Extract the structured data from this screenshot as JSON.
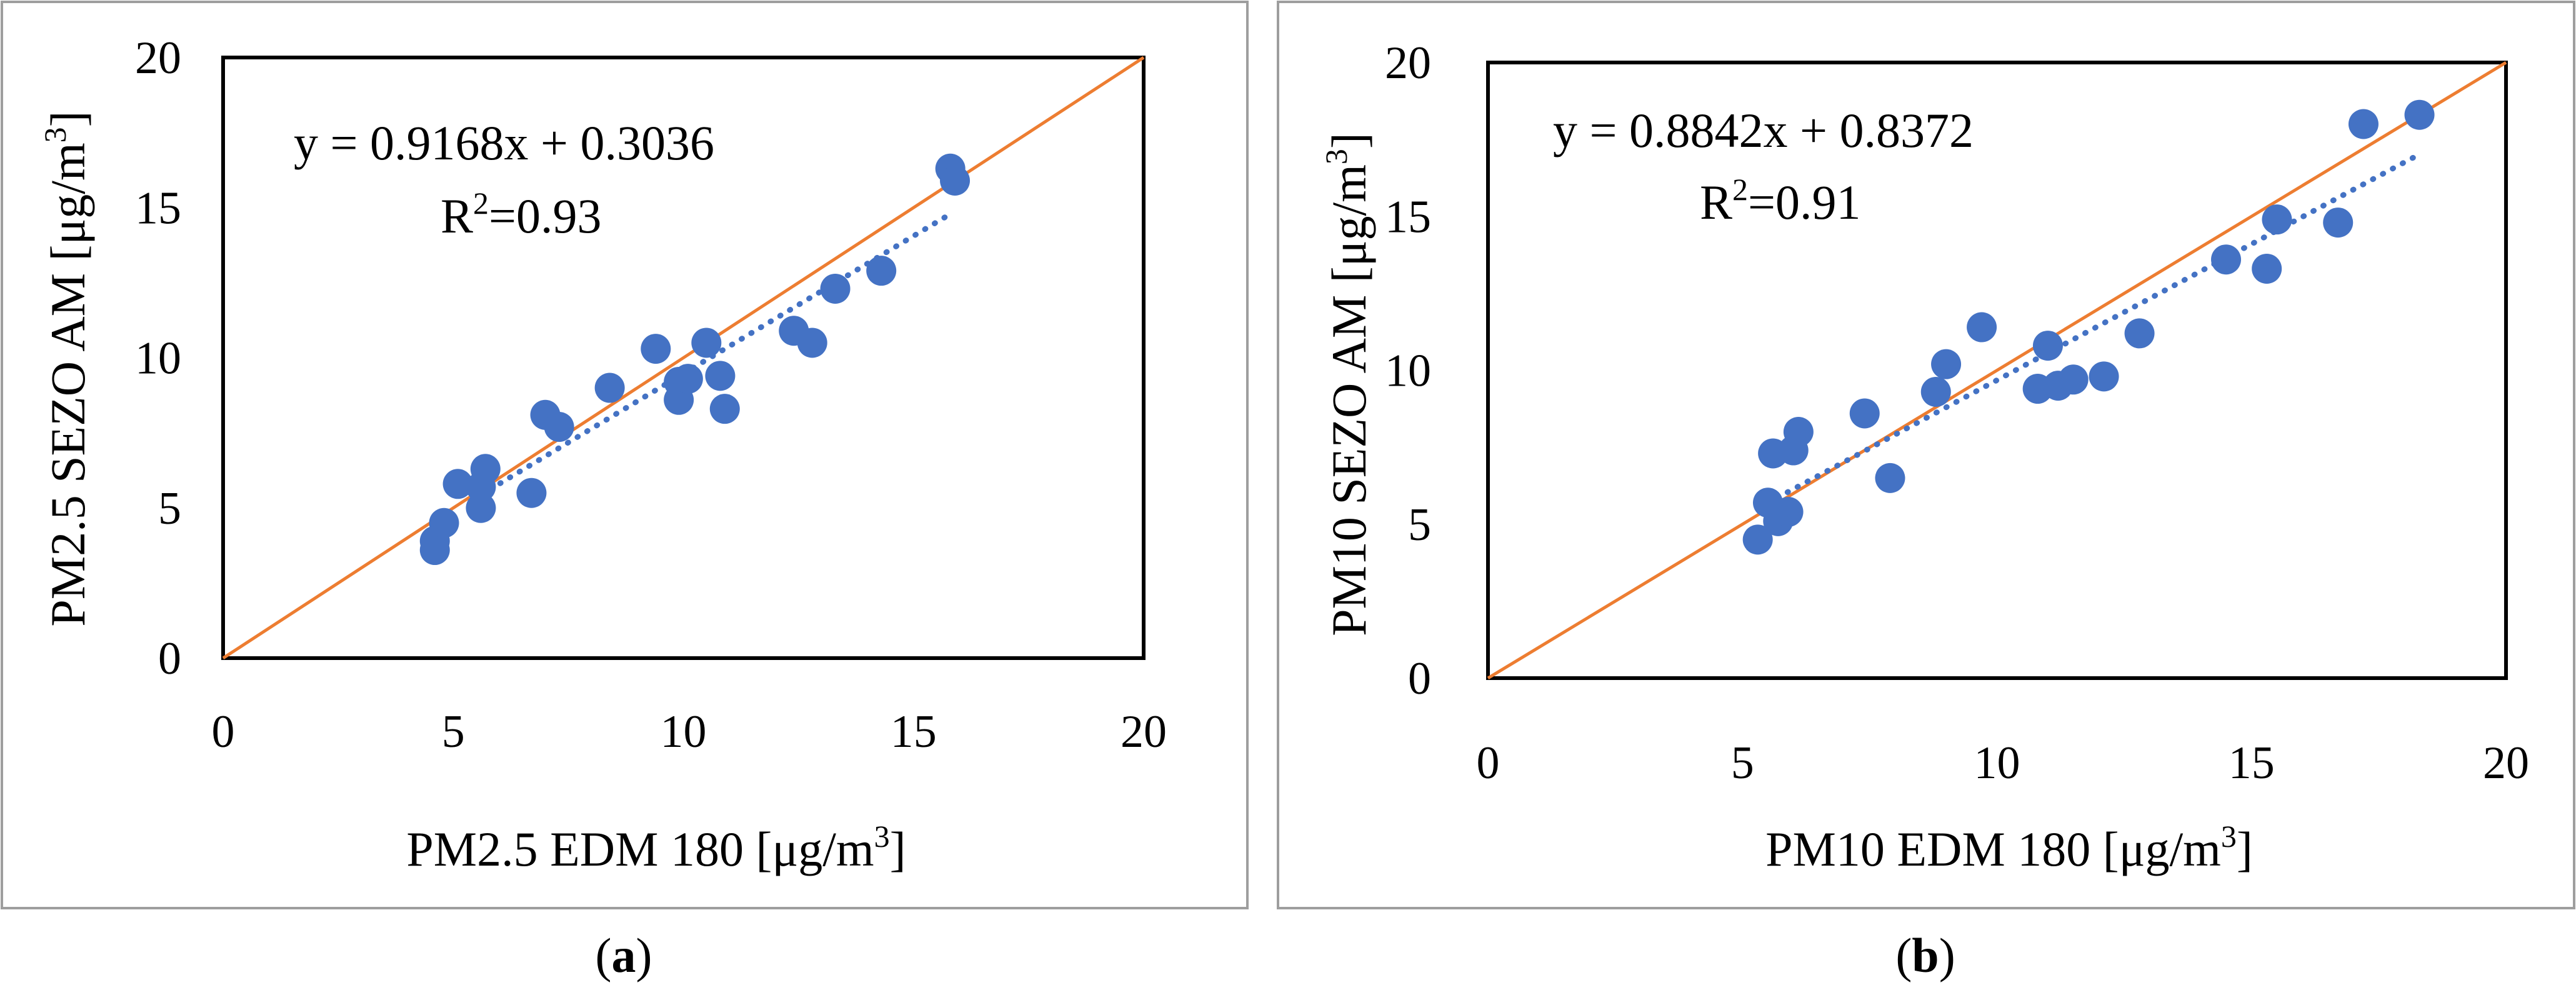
{
  "chart_data": [
    {
      "type": "scatter",
      "panel_label": "a",
      "xlabel": "PM2.5 EDM 180 [μg/m3]",
      "ylabel": "PM2.5 SEZO AM [μg/m3]",
      "xlim": [
        0,
        20
      ],
      "ylim": [
        0,
        20
      ],
      "x_ticks": [
        "0",
        "5",
        "10",
        "15",
        "20"
      ],
      "y_ticks": [
        "0",
        "5",
        "10",
        "15",
        "20"
      ],
      "equation": "y = 0.9168x + 0.3036",
      "r_squared": "R2=0.93",
      "trendline": {
        "slope": 0.9168,
        "intercept": 0.3036,
        "x_range": [
          5.6,
          15.8
        ]
      },
      "reference_line": {
        "label": "1:1",
        "slope": 1,
        "intercept": 0
      },
      "points": [
        [
          4.6,
          3.6
        ],
        [
          4.6,
          3.9
        ],
        [
          4.8,
          4.5
        ],
        [
          5.1,
          5.8
        ],
        [
          5.6,
          5.0
        ],
        [
          5.6,
          5.7
        ],
        [
          5.7,
          6.3
        ],
        [
          6.7,
          5.5
        ],
        [
          7.0,
          8.1
        ],
        [
          7.3,
          7.7
        ],
        [
          8.4,
          9.0
        ],
        [
          9.4,
          10.3
        ],
        [
          9.9,
          9.2
        ],
        [
          9.9,
          8.6
        ],
        [
          10.1,
          9.3
        ],
        [
          10.5,
          10.5
        ],
        [
          10.8,
          9.4
        ],
        [
          10.9,
          8.3
        ],
        [
          12.4,
          10.9
        ],
        [
          12.8,
          10.5
        ],
        [
          13.3,
          12.3
        ],
        [
          14.3,
          12.9
        ],
        [
          15.8,
          16.3
        ],
        [
          15.9,
          15.9
        ]
      ]
    },
    {
      "type": "scatter",
      "panel_label": "b",
      "xlabel": "PM10 EDM 180 [μg/m3]",
      "ylabel": "PM10 SEZO AM [μg/m3]",
      "xlim": [
        0,
        20
      ],
      "ylim": [
        0,
        20
      ],
      "x_ticks": [
        "0",
        "5",
        "10",
        "15",
        "20"
      ],
      "y_ticks": [
        "0",
        "5",
        "10",
        "15",
        "20"
      ],
      "equation": "y = 0.8842x + 0.8372",
      "r_squared": "R2=0.91",
      "trendline": {
        "slope": 0.8842,
        "intercept": 0.8372,
        "x_range": [
          5.3,
          18.3
        ]
      },
      "reference_line": {
        "label": "1:1",
        "slope": 1,
        "intercept": 0
      },
      "points": [
        [
          5.3,
          4.5
        ],
        [
          5.5,
          5.7
        ],
        [
          5.6,
          7.3
        ],
        [
          5.7,
          5.1
        ],
        [
          5.9,
          5.4
        ],
        [
          6.0,
          7.4
        ],
        [
          6.1,
          8.0
        ],
        [
          7.4,
          8.6
        ],
        [
          7.9,
          6.5
        ],
        [
          8.8,
          9.3
        ],
        [
          9.0,
          10.2
        ],
        [
          9.7,
          11.4
        ],
        [
          10.8,
          9.4
        ],
        [
          11.0,
          10.8
        ],
        [
          11.2,
          9.5
        ],
        [
          11.5,
          9.7
        ],
        [
          12.1,
          9.8
        ],
        [
          12.8,
          11.2
        ],
        [
          14.5,
          13.6
        ],
        [
          15.3,
          13.3
        ],
        [
          15.5,
          14.9
        ],
        [
          16.7,
          14.8
        ],
        [
          17.2,
          18.0
        ],
        [
          18.3,
          18.3
        ]
      ]
    }
  ],
  "colors": {
    "marker": "#4472C4",
    "trendline": "#4472C4",
    "reference_line": "#ED7D31",
    "frame": "#000000",
    "panel_border": "#9E9E9E"
  }
}
